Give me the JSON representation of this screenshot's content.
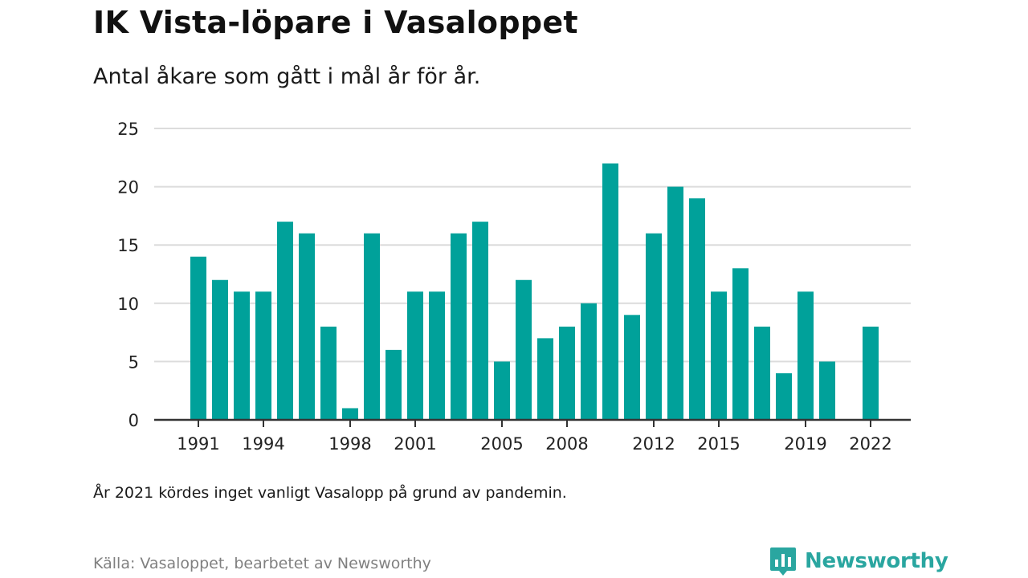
{
  "header": {
    "title": "IK Vista-löpare i Vasaloppet",
    "subtitle": "Antal åkare som gått i mål år för år."
  },
  "footer": {
    "note": "År 2021 kördes inget vanligt Vasalopp på grund av pandemin.",
    "source": "Källa: Vasaloppet, bearbetet av Newsworthy",
    "logo_text": "Newsworthy",
    "logo_icon": "bar-chart-speech-bubble-icon"
  },
  "colors": {
    "bar": "#00a19a",
    "grid": "#dcdcdc",
    "axis": "#333333",
    "logo": "#2aa6a0"
  },
  "chart_data": {
    "type": "bar",
    "x": [
      1991,
      1992,
      1993,
      1994,
      1995,
      1996,
      1997,
      1998,
      1999,
      2000,
      2001,
      2002,
      2003,
      2004,
      2005,
      2006,
      2007,
      2008,
      2009,
      2010,
      2011,
      2012,
      2013,
      2014,
      2015,
      2016,
      2017,
      2018,
      2019,
      2020,
      2021,
      2022
    ],
    "values": [
      14,
      12,
      11,
      11,
      17,
      16,
      8,
      1,
      16,
      6,
      11,
      11,
      16,
      17,
      5,
      12,
      7,
      8,
      10,
      22,
      9,
      16,
      20,
      19,
      11,
      13,
      8,
      4,
      11,
      5,
      null,
      8
    ],
    "x_tick_labels": [
      "1991",
      "1994",
      "1998",
      "2001",
      "2005",
      "2008",
      "2012",
      "2015",
      "2019",
      "2022"
    ],
    "y_ticks": [
      0,
      5,
      10,
      15,
      20,
      25
    ],
    "ylim": [
      0,
      25
    ],
    "xlabel": "",
    "ylabel": "",
    "grid": true,
    "legend": "none"
  }
}
